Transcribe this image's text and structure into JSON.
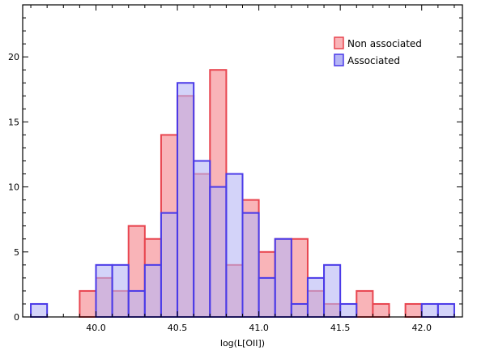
{
  "chart_data": {
    "type": "bar",
    "subtype": "overlaid-histogram",
    "xlabel": "log(L[OII])",
    "ylabel": "",
    "xlim": [
      39.55,
      42.25
    ],
    "ylim": [
      0,
      24
    ],
    "x_ticks": [
      "40.0",
      "40.5",
      "41.0",
      "41.5",
      "42.0"
    ],
    "x_tick_values": [
      40.0,
      40.5,
      41.0,
      41.5,
      42.0
    ],
    "y_ticks": [
      "0",
      "5",
      "10",
      "15",
      "20"
    ],
    "y_tick_values": [
      0,
      5,
      10,
      15,
      20
    ],
    "bin_width": 0.1,
    "bin_centers": [
      39.65,
      39.75,
      39.85,
      39.95,
      40.05,
      40.15,
      40.25,
      40.35,
      40.45,
      40.55,
      40.65,
      40.75,
      40.85,
      40.95,
      41.05,
      41.15,
      41.25,
      41.35,
      41.45,
      41.55,
      41.65,
      41.75,
      41.85,
      41.95,
      42.05,
      42.15
    ],
    "series": [
      {
        "name": "Non associated",
        "fill": "#f9b4b8",
        "stroke": "#e8454f",
        "values": [
          0,
          0,
          0,
          2,
          3,
          2,
          7,
          6,
          14,
          17,
          11,
          19,
          4,
          9,
          5,
          6,
          6,
          2,
          1,
          0,
          2,
          1,
          0,
          1,
          0,
          0
        ]
      },
      {
        "name": "Associated",
        "fill": "#b5b5f5",
        "stroke": "#4a3ae8",
        "values": [
          1,
          0,
          0,
          0,
          4,
          4,
          2,
          4,
          8,
          18,
          12,
          10,
          11,
          8,
          3,
          6,
          1,
          3,
          4,
          1,
          0,
          0,
          0,
          0,
          1,
          1
        ]
      }
    ],
    "overlap_fill": "#9c7ab9",
    "legend": {
      "position": "top-right",
      "entries": [
        "Non associated",
        "Associated"
      ]
    },
    "grid": false
  }
}
